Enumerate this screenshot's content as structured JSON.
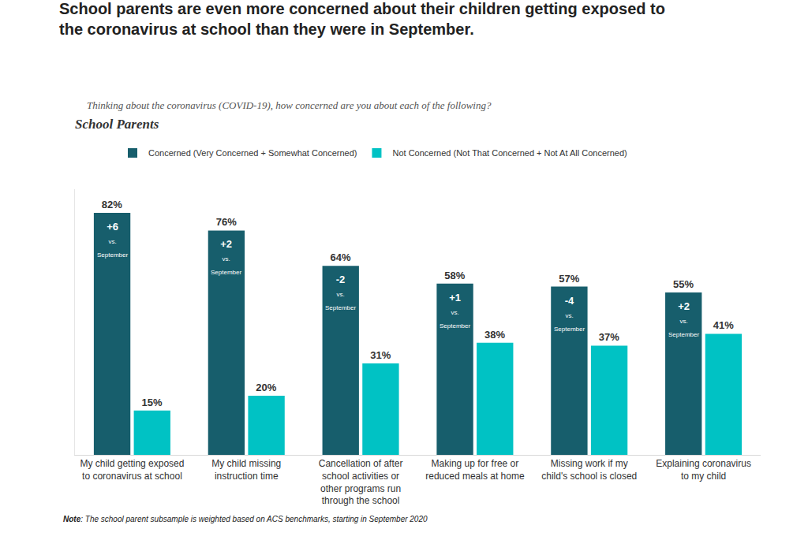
{
  "chart_data": {
    "type": "bar",
    "title": "School parents are even more concerned about their children getting exposed to the coronavirus at school than they were in September.",
    "subtitle": "Thinking about the coronavirus (COVID-19), how concerned are you about each of the following?",
    "panel_label": "School Parents",
    "note": "Note: The school parent subsample is weighted based on ACS benchmarks, starting in September 2020",
    "categories": [
      "My child getting exposed to coronavirus at school",
      "My child missing instruction time",
      "Cancellation of after school activities or other programs run through the school",
      "Making up for free or reduced meals at home",
      "Missing work if my child's school is closed",
      "Explaining coronavirus to my child"
    ],
    "series": [
      {
        "name": "Concerned (Very Concerned + Somewhat Concerned)",
        "color": "#175e6c",
        "values": [
          82,
          76,
          64,
          58,
          57,
          55
        ],
        "value_labels": [
          "82%",
          "76%",
          "64%",
          "58%",
          "57%",
          "55%"
        ],
        "changes": {
          "values": [
            6,
            2,
            -2,
            1,
            -4,
            2
          ],
          "labels": [
            "+6",
            "+2",
            "-2",
            "+1",
            "-4",
            "+2"
          ],
          "text": "vs. September"
        }
      },
      {
        "name": "Not Concerned (Not That Concerned + Not At All Concerned)",
        "color": "#00c2c4",
        "values": [
          15,
          20,
          31,
          38,
          37,
          41
        ],
        "value_labels": [
          "15%",
          "20%",
          "31%",
          "38%",
          "37%",
          "41%"
        ]
      }
    ],
    "ylim": [
      0,
      90
    ],
    "yticks": [
      0
    ],
    "grid": false,
    "legend": "top",
    "data_labels": true,
    "tick_labels": "x"
  }
}
